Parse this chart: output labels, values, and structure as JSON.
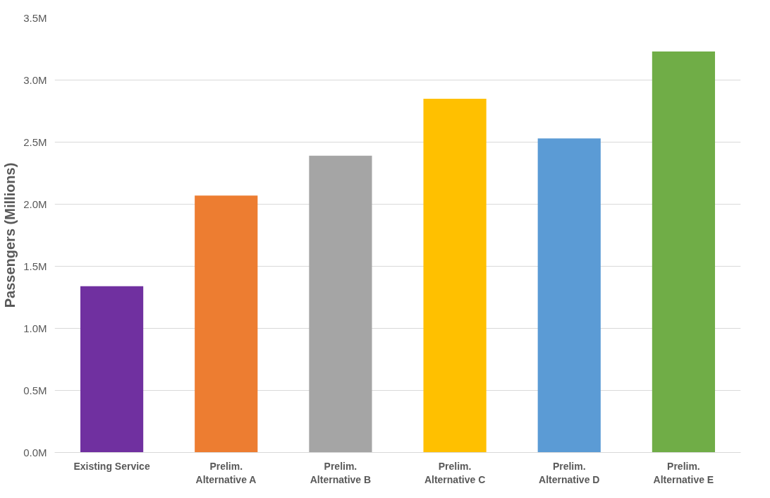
{
  "chart_data": {
    "type": "bar",
    "ylabel": "Passengers (Millions)",
    "categories": [
      "Existing Service",
      "Prelim.\nAlternative A",
      "Prelim.\nAlternative B",
      "Prelim.\nAlternative C",
      "Prelim.\nAlternative D",
      "Prelim.\nAlternative E"
    ],
    "values": [
      1.34,
      2.07,
      2.39,
      2.85,
      2.53,
      3.23
    ],
    "colors": [
      "#7030a0",
      "#ed7d31",
      "#a5a5a5",
      "#ffc000",
      "#5b9bd5",
      "#70ad47"
    ],
    "ylim": [
      0,
      3.5
    ],
    "yticks": [
      {
        "value": 0,
        "label": "0.0M"
      },
      {
        "value": 0.5,
        "label": "0.5M"
      },
      {
        "value": 1,
        "label": "1.0M"
      },
      {
        "value": 1.5,
        "label": "1.5M"
      },
      {
        "value": 2,
        "label": "2.0M"
      },
      {
        "value": 2.5,
        "label": "2.5M"
      },
      {
        "value": 3,
        "label": "3.0M"
      },
      {
        "value": 3.5,
        "label": "3.5M"
      }
    ],
    "grid": "y"
  }
}
